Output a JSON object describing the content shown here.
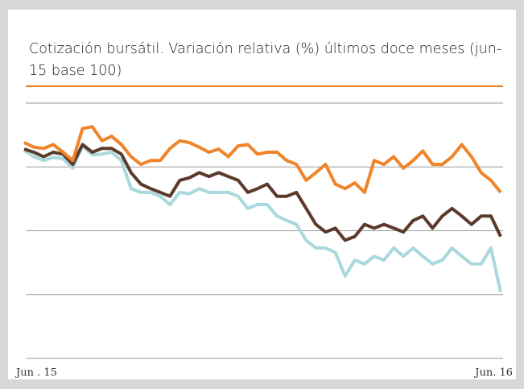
{
  "chart_data": {
    "type": "line",
    "title": "Cotización bursátil. Variación relativa (%) últimos doce meses (jun-15 base 100)",
    "categories": [
      "Jun . 15",
      null,
      null,
      null,
      null,
      null,
      null,
      null,
      null,
      null,
      null,
      null,
      null,
      null,
      null,
      null,
      null,
      null,
      null,
      null,
      null,
      null,
      null,
      null,
      null,
      null,
      null,
      null,
      null,
      null,
      null,
      null,
      null,
      null,
      null,
      null,
      null,
      null,
      null,
      null,
      null,
      null,
      null,
      null,
      null,
      null,
      null,
      null,
      null,
      "Jun. 16"
    ],
    "series": [
      {
        "color": "#f0842a",
        "values": [
          103.8,
          103.1,
          102.9,
          103.5,
          102.3,
          101.0,
          106.0,
          106.3,
          104.1,
          104.8,
          103.5,
          101.6,
          100.4,
          101.0,
          101.0,
          102.9,
          104.1,
          103.8,
          103.1,
          102.3,
          102.8,
          101.6,
          103.3,
          103.5,
          102.0,
          102.3,
          102.3,
          101.0,
          100.4,
          97.9,
          99.1,
          100.4,
          97.3,
          96.6,
          97.5,
          96.0,
          101.0,
          100.4,
          101.6,
          99.8,
          101.0,
          102.5,
          100.4,
          100.4,
          101.6,
          103.5,
          101.6,
          99.1,
          97.9,
          96.0
        ]
      },
      {
        "color": "#5b3a2c",
        "values": [
          102.8,
          102.3,
          101.6,
          102.3,
          102.0,
          100.4,
          103.5,
          102.3,
          102.9,
          102.9,
          102.0,
          99.1,
          97.3,
          96.6,
          96.0,
          95.4,
          97.9,
          98.3,
          99.1,
          98.5,
          99.1,
          98.5,
          97.9,
          96.0,
          96.6,
          97.3,
          95.4,
          95.4,
          96.0,
          93.5,
          91.0,
          89.8,
          90.4,
          88.5,
          89.1,
          91.0,
          90.4,
          91.0,
          90.4,
          89.8,
          91.6,
          92.3,
          90.4,
          92.3,
          93.5,
          92.3,
          91.0,
          92.3,
          92.3,
          89.1
        ]
      },
      {
        "color": "#a9d8dd",
        "values": [
          102.6,
          101.6,
          101.0,
          101.5,
          101.3,
          99.8,
          103.3,
          101.9,
          102.0,
          102.3,
          101.0,
          96.6,
          96.0,
          96.0,
          95.4,
          94.1,
          96.0,
          95.8,
          96.6,
          96.0,
          96.0,
          96.0,
          95.4,
          93.5,
          94.1,
          94.1,
          92.3,
          91.6,
          91.0,
          88.5,
          87.3,
          87.3,
          86.6,
          82.9,
          85.4,
          84.8,
          86.0,
          85.4,
          87.3,
          86.0,
          87.3,
          86.0,
          84.8,
          85.4,
          87.3,
          86.0,
          84.8,
          84.8,
          87.3,
          80.4
        ]
      }
    ],
    "ylim": [
      70,
      110
    ],
    "yticks": [
      70,
      80,
      90,
      100,
      110
    ],
    "grid": true
  }
}
